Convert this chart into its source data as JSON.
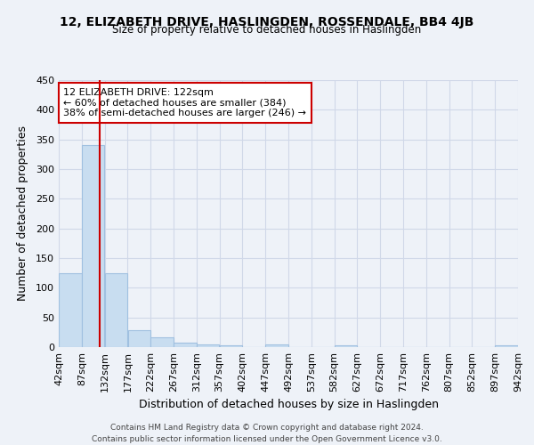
{
  "title": "12, ELIZABETH DRIVE, HASLINGDEN, ROSSENDALE, BB4 4JB",
  "subtitle": "Size of property relative to detached houses in Haslingden",
  "xlabel": "Distribution of detached houses by size in Haslingden",
  "ylabel": "Number of detached properties",
  "footer_line1": "Contains HM Land Registry data © Crown copyright and database right 2024.",
  "footer_line2": "Contains public sector information licensed under the Open Government Licence v3.0.",
  "annotation_line1": "12 ELIZABETH DRIVE: 122sqm",
  "annotation_line2": "← 60% of detached houses are smaller (384)",
  "annotation_line3": "38% of semi-detached houses are larger (246) →",
  "bin_edges": [
    42,
    87,
    132,
    177,
    222,
    267,
    312,
    357,
    402,
    447,
    492,
    537,
    582,
    627,
    672,
    717,
    762,
    807,
    852,
    897,
    942
  ],
  "bin_counts": [
    125,
    340,
    125,
    28,
    16,
    8,
    5,
    3,
    0,
    5,
    0,
    0,
    3,
    0,
    0,
    0,
    0,
    0,
    0,
    3
  ],
  "property_size": 122,
  "bar_color": "#c8ddf0",
  "bar_edge_color": "#a0c0e0",
  "red_line_color": "#cc0000",
  "grid_color": "#d0d8e8",
  "bg_color": "#eef2f8",
  "annotation_box_edge": "#cc0000",
  "ylim": [
    0,
    450
  ],
  "tick_labels": [
    "42sqm",
    "87sqm",
    "132sqm",
    "177sqm",
    "222sqm",
    "267sqm",
    "312sqm",
    "357sqm",
    "402sqm",
    "447sqm",
    "492sqm",
    "537sqm",
    "582sqm",
    "627sqm",
    "672sqm",
    "717sqm",
    "762sqm",
    "807sqm",
    "852sqm",
    "897sqm",
    "942sqm"
  ]
}
